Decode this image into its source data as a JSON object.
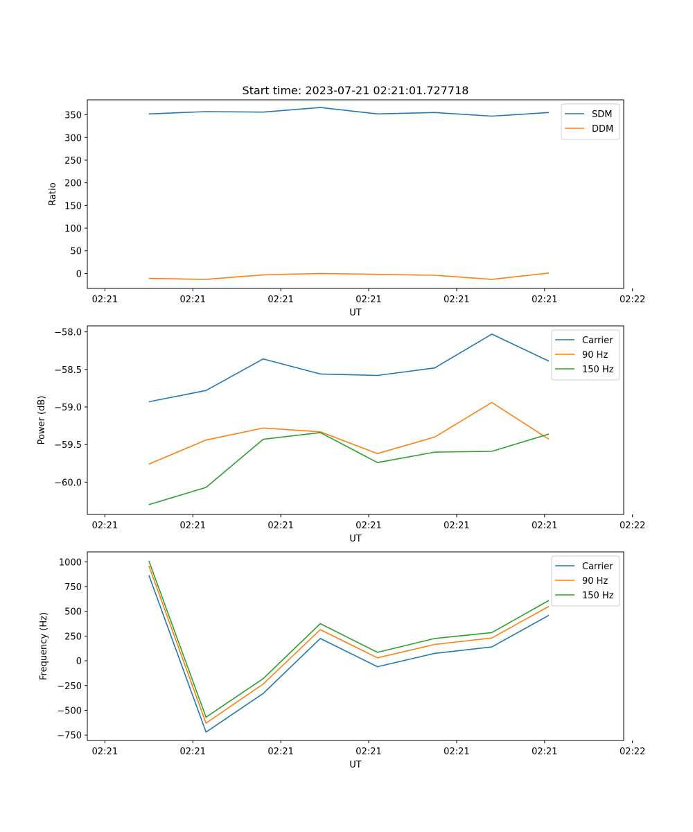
{
  "figure": {
    "title": "Start time: 2023-07-21 02:21:01.727718",
    "colors": {
      "blue": "#1f77b4",
      "orange": "#ff7f0e",
      "green": "#2ca02c"
    }
  },
  "chart_data": [
    {
      "type": "line",
      "title": "Start time: 2023-07-21 02:21:01.727718",
      "xlabel": "UT",
      "ylabel": "Ratio",
      "xlim": [
        -0.14,
        1.08
      ],
      "ylim": [
        -33,
        383
      ],
      "x": [
        0,
        0.13,
        0.26,
        0.39,
        0.52,
        0.65,
        0.78,
        0.91
      ],
      "xticks": [
        -0.1,
        0.1,
        0.3,
        0.5,
        0.7,
        0.9,
        1.1
      ],
      "xtick_labels": [
        "02:21",
        "02:21",
        "02:21",
        "02:21",
        "02:21",
        "02:21",
        "02:22"
      ],
      "yticks": [
        0,
        50,
        100,
        150,
        200,
        250,
        300,
        350
      ],
      "ytick_labels": [
        "0",
        "50",
        "100",
        "150",
        "200",
        "250",
        "300",
        "350"
      ],
      "legend_position": "top-right",
      "series": [
        {
          "name": "SDM",
          "color": "#1f77b4",
          "values": [
            352,
            357,
            356,
            366,
            352,
            355,
            347,
            355
          ]
        },
        {
          "name": "DDM",
          "color": "#ff7f0e",
          "values": [
            -11,
            -13,
            -3,
            0,
            -2,
            -4,
            -13,
            1
          ]
        }
      ]
    },
    {
      "type": "line",
      "xlabel": "UT",
      "ylabel": "Power (dB)",
      "xlim": [
        -0.14,
        1.08
      ],
      "ylim": [
        -60.43,
        -57.92
      ],
      "x": [
        0,
        0.13,
        0.26,
        0.39,
        0.52,
        0.65,
        0.78,
        0.91
      ],
      "xticks": [
        -0.1,
        0.1,
        0.3,
        0.5,
        0.7,
        0.9,
        1.1
      ],
      "xtick_labels": [
        "02:21",
        "02:21",
        "02:21",
        "02:21",
        "02:21",
        "02:21",
        "02:22"
      ],
      "yticks": [
        -60.0,
        -59.5,
        -59.0,
        -58.5,
        -58.0
      ],
      "ytick_labels": [
        "−60.0",
        "−59.5",
        "−59.0",
        "−58.5",
        "−58.0"
      ],
      "legend_position": "top-right",
      "series": [
        {
          "name": "Carrier",
          "color": "#1f77b4",
          "values": [
            -58.93,
            -58.78,
            -58.36,
            -58.56,
            -58.58,
            -58.48,
            -58.03,
            -58.39
          ]
        },
        {
          "name": "90 Hz",
          "color": "#ff7f0e",
          "values": [
            -59.76,
            -59.44,
            -59.28,
            -59.33,
            -59.62,
            -59.4,
            -58.94,
            -59.43
          ]
        },
        {
          "name": "150 Hz",
          "color": "#2ca02c",
          "values": [
            -60.3,
            -60.07,
            -59.43,
            -59.34,
            -59.74,
            -59.6,
            -59.59,
            -59.36
          ]
        }
      ]
    },
    {
      "type": "line",
      "xlabel": "UT",
      "ylabel": "Frequency (Hz)",
      "xlim": [
        -0.14,
        1.08
      ],
      "ylim": [
        -805,
        1100
      ],
      "x": [
        0,
        0.13,
        0.26,
        0.39,
        0.52,
        0.65,
        0.78,
        0.91
      ],
      "xticks": [
        -0.1,
        0.1,
        0.3,
        0.5,
        0.7,
        0.9,
        1.1
      ],
      "xtick_labels": [
        "02:21",
        "02:21",
        "02:21",
        "02:21",
        "02:21",
        "02:21",
        "02:22"
      ],
      "yticks": [
        -750,
        -500,
        -250,
        0,
        250,
        500,
        750,
        1000
      ],
      "ytick_labels": [
        "−750",
        "−500",
        "−250",
        "0",
        "250",
        "500",
        "750",
        "1000"
      ],
      "legend_position": "top-right",
      "series": [
        {
          "name": "Carrier",
          "color": "#1f77b4",
          "values": [
            865,
            -720,
            -330,
            225,
            -60,
            75,
            140,
            460
          ]
        },
        {
          "name": "90 Hz",
          "color": "#ff7f0e",
          "values": [
            960,
            -630,
            -235,
            315,
            30,
            165,
            230,
            550
          ]
        },
        {
          "name": "150 Hz",
          "color": "#2ca02c",
          "values": [
            1010,
            -570,
            -180,
            375,
            85,
            225,
            285,
            610
          ]
        }
      ]
    }
  ]
}
